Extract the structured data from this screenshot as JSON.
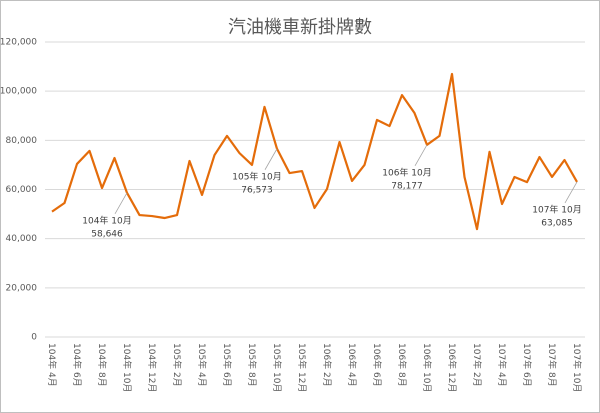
{
  "chart_data": {
    "type": "line",
    "title": "汽油機車新掛牌數",
    "categories": [
      "104年 4月",
      null,
      "104年 6月",
      null,
      "104年 8月",
      null,
      "104年 10月",
      null,
      "104年 12月",
      null,
      "105年 2月",
      null,
      "105年 4月",
      null,
      "105年 6月",
      null,
      "105年 8月",
      null,
      "105年 10月",
      null,
      "105年 12月",
      null,
      "106年 2月",
      null,
      "106年 4月",
      null,
      "106年 6月",
      null,
      "106年 8月",
      null,
      "106年 10月",
      null,
      "106年 12月",
      null,
      "107年 2月",
      null,
      "107年 4月",
      null,
      "107年 6月",
      null,
      "107年 8月",
      null,
      "107年 10月"
    ],
    "series": [
      {
        "color": "#e46c0a",
        "values": [
          51000,
          54500,
          70400,
          75700,
          60600,
          72800,
          58646,
          49600,
          49200,
          48400,
          49600,
          71600,
          57800,
          74000,
          81800,
          74800,
          70000,
          93600,
          76573,
          66700,
          67500,
          52500,
          60200,
          79300,
          63500,
          70000,
          88300,
          85800,
          98400,
          91100,
          78177,
          81800,
          107000,
          65100,
          43900,
          75300,
          54100,
          65100,
          63000,
          73200,
          65100,
          72000,
          63085
        ],
        "value_labels": [
          null,
          null,
          null,
          null,
          null,
          null,
          "58,646",
          null,
          null,
          null,
          null,
          null,
          null,
          null,
          null,
          null,
          null,
          null,
          "76,573",
          null,
          null,
          null,
          null,
          null,
          null,
          null,
          null,
          null,
          null,
          null,
          "78,177",
          null,
          null,
          null,
          null,
          null,
          null,
          null,
          null,
          null,
          null,
          null,
          "63,085"
        ]
      }
    ],
    "ylim": [
      0,
      120000
    ],
    "yticks": [
      0,
      {
        "value": 20000,
        "label": "20,000"
      },
      {
        "value": 40000,
        "label": "40,000"
      },
      {
        "value": 60000,
        "label": "60,000"
      },
      {
        "value": 80000,
        "label": "80,000"
      },
      {
        "value": 100000,
        "label": "100,000"
      },
      {
        "value": 120000,
        "label": "120,000"
      }
    ],
    "grid": true
  }
}
